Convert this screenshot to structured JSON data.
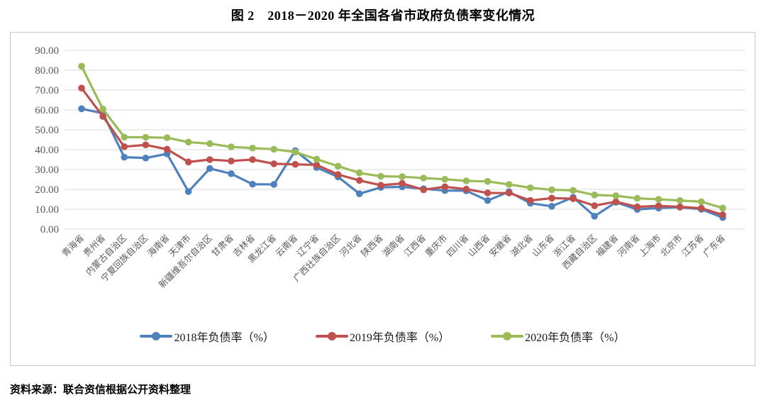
{
  "header": {
    "title": "图 2　2018－2020 年全国各省市政府负债率变化情况"
  },
  "footer": {
    "source": "资料来源：联合资信根据公开资料整理"
  },
  "chart_data": {
    "type": "line",
    "title": "图 2　2018－2020 年全国各省市政府负债率变化情况",
    "xlabel": "",
    "ylabel": "",
    "ylim": [
      0,
      90
    ],
    "grid": true,
    "legend_position": "bottom",
    "x_label_rotation": 45,
    "marker": "circle",
    "y_ticks": [
      "90.00",
      "80.00",
      "70.00",
      "60.00",
      "50.00",
      "40.00",
      "30.00",
      "20.00",
      "10.00",
      "0.00"
    ],
    "categories": [
      "青海省",
      "贵州省",
      "内蒙古自治区",
      "宁夏回族自治区",
      "海南省",
      "天津市",
      "新疆维吾尔自治区",
      "甘肃省",
      "吉林省",
      "黑龙江省",
      "云南省",
      "辽宁省",
      "广西壮族自治区",
      "河北省",
      "陕西省",
      "湖南省",
      "江西省",
      "重庆市",
      "四川省",
      "山西省",
      "安徽省",
      "湖北省",
      "山东省",
      "浙江省",
      "西藏自治区",
      "福建省",
      "河南省",
      "上海市",
      "北京市",
      "江苏省",
      "广东省"
    ],
    "series": [
      {
        "name": "2018年负债率（%）",
        "color": "#4F81BD",
        "values": [
          60.6,
          58.3,
          36.2,
          35.8,
          37.9,
          18.9,
          30.5,
          27.9,
          22.6,
          22.5,
          39.5,
          31.0,
          26.3,
          17.8,
          21.0,
          21.3,
          20.3,
          19.4,
          19.3,
          14.4,
          18.8,
          13.0,
          11.5,
          16.0,
          6.5,
          13.5,
          9.9,
          10.6,
          11.0,
          10.0,
          5.8
        ]
      },
      {
        "name": "2019年负债率（%）",
        "color": "#C0504D",
        "values": [
          71.0,
          56.7,
          41.5,
          42.4,
          40.2,
          33.8,
          35.0,
          34.3,
          35.0,
          32.9,
          32.6,
          32.3,
          27.5,
          24.5,
          22.1,
          23.0,
          19.8,
          21.3,
          20.1,
          18.2,
          18.2,
          14.4,
          15.6,
          15.3,
          11.8,
          13.8,
          11.2,
          11.7,
          11.2,
          10.5,
          7.2
        ]
      },
      {
        "name": "2020年负债率（%）",
        "color": "#9BBB59",
        "values": [
          82.0,
          60.4,
          46.3,
          46.2,
          46.0,
          43.8,
          43.0,
          41.4,
          40.8,
          40.2,
          38.8,
          35.2,
          31.7,
          28.3,
          26.6,
          26.4,
          25.7,
          25.1,
          24.3,
          24.0,
          22.5,
          20.8,
          19.8,
          19.5,
          17.2,
          16.8,
          15.5,
          15.0,
          14.4,
          13.8,
          10.6
        ]
      }
    ]
  }
}
